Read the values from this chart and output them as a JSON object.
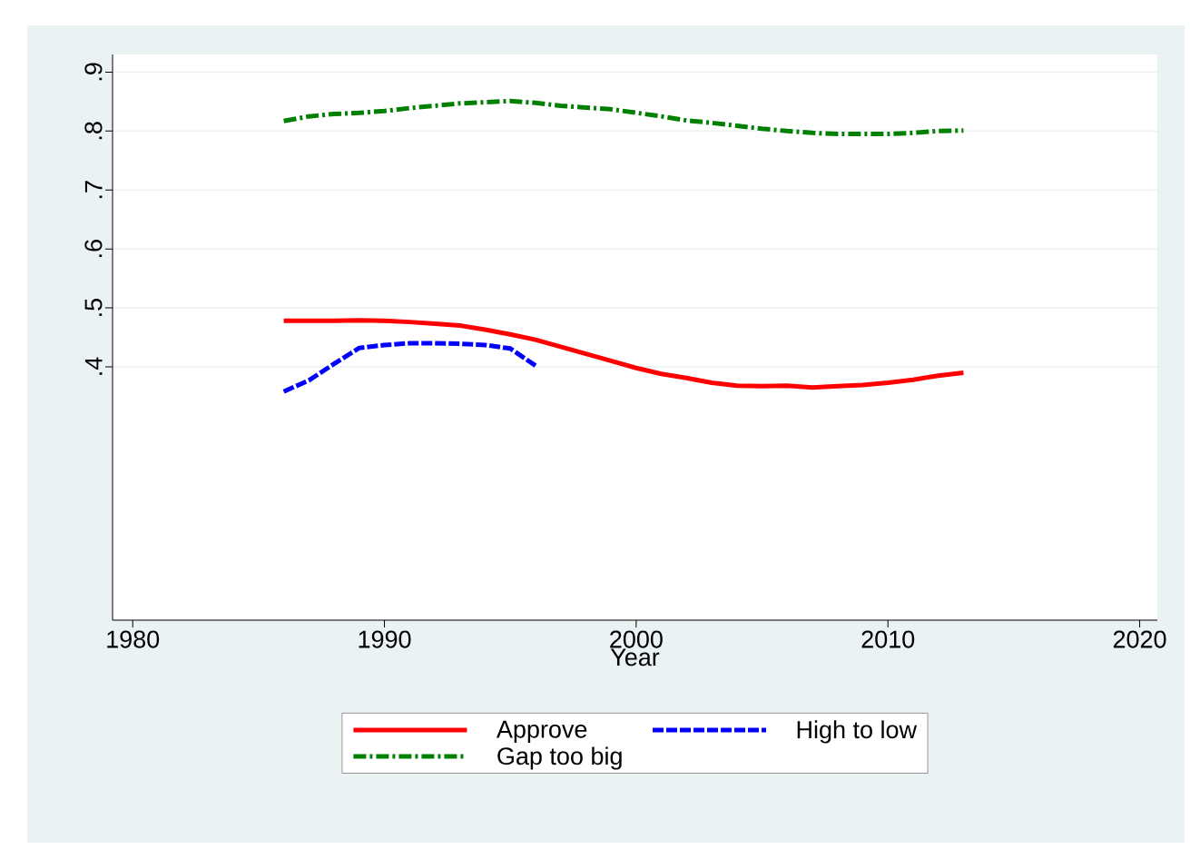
{
  "chart_data": {
    "type": "line",
    "xlabel": "Year",
    "x": [
      1986,
      1987,
      1988,
      1989,
      1990,
      1991,
      1992,
      1993,
      1994,
      1995,
      1996,
      1997,
      1998,
      1999,
      2000,
      2001,
      2002,
      2003,
      2004,
      2005,
      2006,
      2007,
      2008,
      2009,
      2010,
      2011,
      2012,
      2013
    ],
    "series": [
      {
        "name": "Approve",
        "color": "#ff0000",
        "line_style": "solid",
        "values": [
          0.478,
          0.478,
          0.478,
          0.479,
          0.478,
          0.476,
          0.473,
          0.47,
          0.463,
          0.455,
          0.446,
          0.434,
          0.422,
          0.41,
          0.398,
          0.388,
          0.381,
          0.373,
          0.368,
          0.367,
          0.368,
          0.365,
          0.367,
          0.369,
          0.373,
          0.378,
          0.385,
          0.39
        ]
      },
      {
        "name": "High to low",
        "color": "#0000ff",
        "line_style": "dashed",
        "x": [
          1986,
          1987,
          1988,
          1989,
          1990,
          1991,
          1992,
          1993,
          1994,
          1995,
          1996
        ],
        "values": [
          0.358,
          0.377,
          0.405,
          0.432,
          0.437,
          0.44,
          0.44,
          0.439,
          0.437,
          0.431,
          0.402
        ]
      },
      {
        "name": "Gap too big",
        "color": "#008000",
        "line_style": "dashdot",
        "values": [
          0.817,
          0.825,
          0.829,
          0.831,
          0.834,
          0.839,
          0.843,
          0.847,
          0.849,
          0.851,
          0.848,
          0.843,
          0.84,
          0.837,
          0.831,
          0.825,
          0.818,
          0.814,
          0.809,
          0.804,
          0.8,
          0.797,
          0.795,
          0.795,
          0.795,
          0.797,
          0.8,
          0.801
        ]
      }
    ],
    "xlim": [
      1979.2,
      2020.7
    ],
    "xticks": [
      1980,
      1990,
      2000,
      2010,
      2020
    ],
    "ylim": [
      -0.03,
      0.93
    ],
    "yticks": [
      {
        "value": 0.4,
        "label": ".4"
      },
      {
        "value": 0.5,
        "label": ".5"
      },
      {
        "value": 0.6,
        "label": ".6"
      },
      {
        "value": 0.7,
        "label": ".7"
      },
      {
        "value": 0.8,
        "label": ".8"
      },
      {
        "value": 0.9,
        "label": ".9"
      }
    ],
    "grid": "y",
    "legend": "bottom",
    "marker": "none"
  }
}
